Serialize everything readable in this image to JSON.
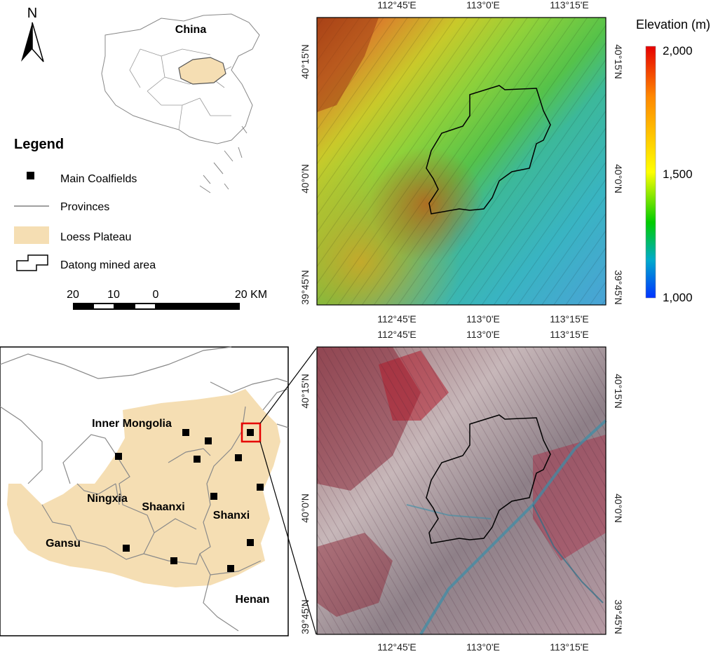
{
  "north_arrow": {
    "label": "N"
  },
  "china_inset": {
    "label": "China"
  },
  "legend": {
    "title": "Legend",
    "items": [
      {
        "label": "Main Coalfields",
        "icon": "black-square-icon"
      },
      {
        "label": "Provinces",
        "icon": "gray-line-icon"
      },
      {
        "label": "Loess Plateau",
        "icon": "tan-fill-icon"
      },
      {
        "label": "Datong mined area",
        "icon": "mine-outline-icon"
      }
    ]
  },
  "scale_bar": {
    "labels": [
      "20",
      "10",
      "0",
      "20 KM"
    ]
  },
  "elevation_legend": {
    "title": "Elevation (m)",
    "ticks": [
      "2,000",
      "1,500",
      "1,000"
    ],
    "values": [
      2000,
      1500,
      1000
    ],
    "colors": [
      "#e60000",
      "#ff8800",
      "#ffff00",
      "#00cc00",
      "#00aacc",
      "#0033ff"
    ]
  },
  "region_map": {
    "labels": {
      "inner_mongolia": "Inner Mongolia",
      "ningxia": "Ningxia",
      "shaanxi": "Shaanxi",
      "shanxi": "Shanxi",
      "gansu": "Gansu",
      "henan": "Henan"
    },
    "colors": {
      "loess": "#f5deb3",
      "boundary": "#808080",
      "highlight": "#e60000"
    }
  },
  "dem_panel": {
    "top_ticks": [
      "112°45'E",
      "113°0'E",
      "113°15'E"
    ],
    "bottom_ticks": [
      "112°45'E",
      "113°0'E",
      "113°15'E"
    ],
    "left_ticks": [
      "40°15'N",
      "40°0'N",
      "39°45'N"
    ],
    "right_ticks": [
      "40°15'N",
      "40°0'N",
      "39°45'N"
    ]
  },
  "image_panel": {
    "top_ticks": [
      "112°45'E",
      "113°0'E",
      "113°15'E"
    ],
    "bottom_ticks": [
      "112°45'E",
      "113°0'E",
      "113°15'E"
    ],
    "left_ticks": [
      "40°15'N",
      "40°0'N",
      "39°45'N"
    ],
    "right_ticks": [
      "40°15'N",
      "40°0'N",
      "39°45'N"
    ]
  }
}
